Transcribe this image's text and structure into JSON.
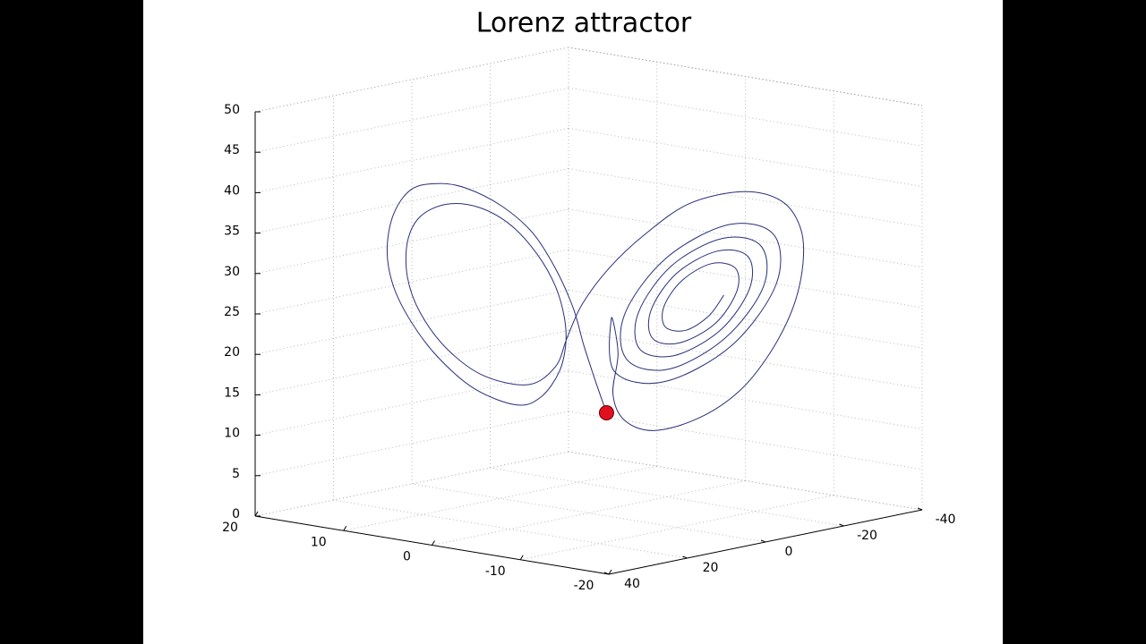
{
  "chart_data": {
    "type": "line3d",
    "title": "Lorenz attractor",
    "series": [
      {
        "color": "#28307a",
        "x": [
          -1.4,
          -0.5,
          0.4,
          1.2,
          2.6,
          4.4,
          6.8,
          9.6,
          11.8,
          13.9,
          15.3,
          15.8,
          15.3,
          13.9,
          11.8,
          8.9,
          5.6,
          3.7,
          2.3,
          1.8,
          1.9,
          2.6,
          4.0,
          6.1,
          8.6,
          11.1,
          13.2,
          14.2,
          14.2,
          13.2,
          11.1,
          8.2,
          4.7,
          2.6,
          1.7,
          0.5,
          -1.6,
          -4.4,
          -7.9,
          -12.1,
          -15.1,
          -16.6,
          -16.8,
          -16.0,
          -14.2,
          -11.8,
          -8.6,
          -5.1,
          -2.8,
          -1.9,
          -2.3,
          -1.8,
          -2.0,
          -5.9,
          -11.2,
          -14.7,
          -14.5,
          -10.9,
          -6.0,
          -2.8,
          -3.0,
          -6.3,
          -10.7,
          -13.7,
          -13.5,
          -10.5,
          -6.5,
          -3.9,
          -4.0,
          -6.7,
          -10.3,
          -12.6,
          -12.5,
          -10.1,
          -6.9,
          -4.9,
          -5.0,
          -7.1,
          -9.9,
          -11.6,
          -11.5,
          -9.6,
          -7.3,
          -5.9,
          -6.0,
          -7.6,
          -9.4,
          -10.6
        ],
        "y": [
          -1.4,
          -0.5,
          0.4,
          1.2,
          2.6,
          4.4,
          6.8,
          9.6,
          11.8,
          13.9,
          15.3,
          15.8,
          15.3,
          13.9,
          11.8,
          8.9,
          5.6,
          3.7,
          2.3,
          1.8,
          1.9,
          2.6,
          4.0,
          6.1,
          8.6,
          11.1,
          13.2,
          14.2,
          14.2,
          13.2,
          11.1,
          8.2,
          4.7,
          2.6,
          1.7,
          0.5,
          -1.6,
          -4.4,
          -7.9,
          -12.1,
          -15.1,
          -16.6,
          -16.8,
          -16.0,
          -14.2,
          -11.8,
          -8.6,
          -5.1,
          -2.8,
          -1.9,
          -2.3,
          -1.8,
          -2.0,
          -5.9,
          -11.2,
          -14.7,
          -14.5,
          -10.9,
          -6.0,
          -2.8,
          -3.0,
          -6.3,
          -10.7,
          -13.7,
          -13.5,
          -10.5,
          -6.5,
          -3.9,
          -4.0,
          -6.7,
          -10.3,
          -12.6,
          -12.5,
          -10.1,
          -6.9,
          -4.9,
          -5.0,
          -7.1,
          -9.9,
          -11.6,
          -11.5,
          -9.6,
          -7.3,
          -5.9,
          -6.0,
          -7.6,
          -9.4,
          -10.6
        ],
        "z": [
          12.5,
          16.5,
          20.8,
          25.2,
          30.0,
          34.3,
          37.4,
          39.4,
          39.8,
          38.9,
          35.7,
          31.2,
          26.8,
          22.5,
          18.3,
          14.6,
          12.9,
          14.1,
          17.3,
          20.7,
          24.0,
          27.8,
          31.6,
          35.1,
          37.1,
          37.3,
          35.6,
          32.4,
          28.0,
          23.7,
          19.4,
          16.3,
          15.5,
          17.9,
          21.5,
          25.8,
          30.4,
          34.8,
          38.9,
          40.7,
          39.8,
          36.6,
          32.2,
          26.6,
          20.9,
          16.0,
          12.4,
          10.6,
          11.7,
          14.9,
          19.9,
          24.3,
          17.7,
          16.7,
          21.6,
          29.5,
          35.6,
          36.5,
          31.9,
          24.7,
          19.2,
          18.3,
          22.5,
          29.1,
          34.1,
          34.8,
          31.1,
          25.1,
          20.6,
          20.0,
          23.4,
          28.7,
          32.7,
          33.2,
          30.2,
          25.5,
          22.0,
          21.6,
          24.2,
          28.3,
          31.2,
          31.6,
          29.3,
          26.0,
          23.5,
          23.2,
          25.1,
          27.8
        ]
      }
    ],
    "point": {
      "x": -1.4,
      "y": -1.4,
      "z": 12.5,
      "color": "#e01020"
    },
    "xlim": [
      -20,
      20
    ],
    "xticks": [
      -20,
      -10,
      0,
      10,
      20
    ],
    "ylim": [
      -40,
      40
    ],
    "yticks": [
      -40,
      -20,
      0,
      20,
      40
    ],
    "zlim": [
      0,
      50
    ],
    "zticks": [
      0,
      5,
      10,
      15,
      20,
      25,
      30,
      35,
      40,
      45,
      50
    ],
    "grid": true
  }
}
